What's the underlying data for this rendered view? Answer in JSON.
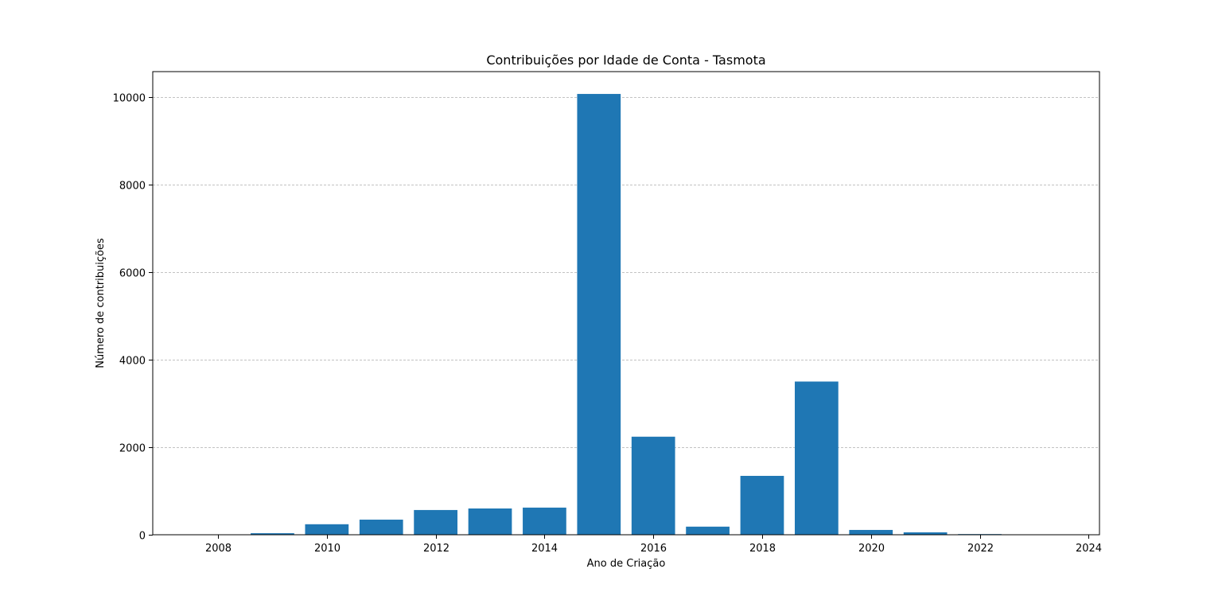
{
  "chart_data": {
    "type": "bar",
    "title": "Contribuições por Idade de Conta - Tasmota",
    "xlabel": "Ano de Criação",
    "ylabel": "Número de contribuições",
    "x": [
      2008,
      2009,
      2010,
      2011,
      2012,
      2013,
      2014,
      2015,
      2016,
      2017,
      2018,
      2019,
      2020,
      2021,
      2022,
      2023
    ],
    "values": [
      3,
      35,
      240,
      345,
      565,
      600,
      620,
      10070,
      2240,
      185,
      1345,
      3500,
      110,
      55,
      15,
      3
    ],
    "xlim": [
      2006.8,
      2024.2
    ],
    "ylim": [
      0,
      10580
    ],
    "xticks": [
      2008,
      2010,
      2012,
      2014,
      2016,
      2018,
      2020,
      2022,
      2024
    ],
    "yticks": [
      0,
      2000,
      4000,
      6000,
      8000,
      10000
    ],
    "grid": {
      "y": true,
      "x": false,
      "style": "dashed"
    },
    "bar_color": "#1f77b4",
    "grid_color": "#b0b0b0"
  }
}
